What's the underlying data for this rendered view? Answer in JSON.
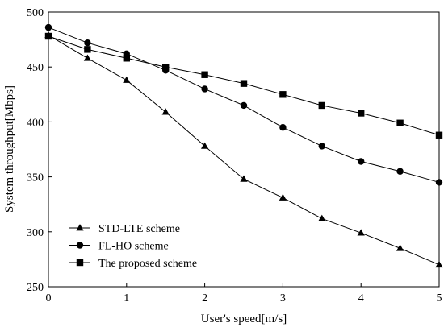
{
  "chart_data": {
    "type": "line",
    "title": "",
    "xlabel": "User's speed[m/s]",
    "ylabel": "System throughput[Mbps]",
    "xlim": [
      0,
      5
    ],
    "ylim": [
      250,
      500
    ],
    "xticks": [
      0,
      1,
      2,
      3,
      4,
      5
    ],
    "yticks": [
      250,
      300,
      350,
      400,
      450,
      500
    ],
    "grid": false,
    "legend_position": "bottom-left",
    "x": [
      0,
      0.5,
      1,
      1.5,
      2,
      2.5,
      3,
      3.5,
      4,
      4.5,
      5
    ],
    "series": [
      {
        "name": "STD-LTE scheme",
        "marker": "triangle",
        "color": "#000000",
        "values": [
          479,
          458,
          438,
          409,
          378,
          348,
          331,
          312,
          299,
          285,
          270
        ]
      },
      {
        "name": "FL-HO scheme",
        "marker": "circle",
        "color": "#000000",
        "values": [
          486,
          472,
          462,
          447,
          430,
          415,
          395,
          378,
          364,
          355,
          345
        ]
      },
      {
        "name": "The proposed scheme",
        "marker": "square",
        "color": "#000000",
        "values": [
          478,
          466,
          458,
          450,
          443,
          435,
          425,
          415,
          408,
          399,
          388
        ]
      }
    ]
  }
}
